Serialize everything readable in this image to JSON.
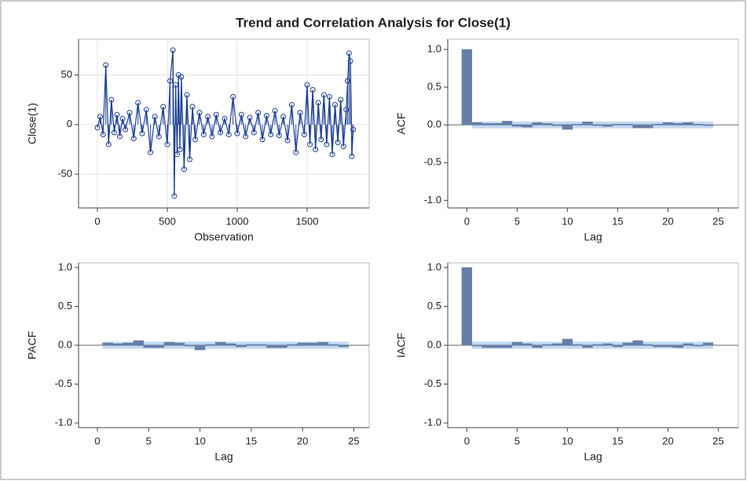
{
  "title": "Trend and Correlation Analysis for Close(1)",
  "chart_data": [
    {
      "type": "line",
      "xlabel": "Observation",
      "ylabel": "Close(1)",
      "color": "#1c3f94",
      "grid": true,
      "x": [
        0,
        20,
        40,
        60,
        80,
        100,
        120,
        140,
        160,
        180,
        200,
        230,
        260,
        290,
        320,
        350,
        380,
        410,
        440,
        470,
        500,
        520,
        540,
        550,
        560,
        570,
        580,
        590,
        600,
        620,
        640,
        660,
        680,
        700,
        730,
        760,
        790,
        820,
        850,
        880,
        910,
        940,
        970,
        1000,
        1030,
        1060,
        1090,
        1120,
        1150,
        1180,
        1210,
        1240,
        1270,
        1300,
        1330,
        1360,
        1390,
        1420,
        1450,
        1480,
        1500,
        1520,
        1540,
        1560,
        1580,
        1600,
        1620,
        1640,
        1660,
        1680,
        1700,
        1720,
        1740,
        1760,
        1780,
        1790,
        1800,
        1810,
        1820,
        1830
      ],
      "values": [
        -3,
        8,
        -10,
        60,
        -20,
        25,
        -8,
        10,
        -12,
        6,
        -5,
        12,
        -14,
        22,
        -9,
        15,
        -28,
        8,
        -12,
        18,
        -20,
        44,
        75,
        -72,
        40,
        -30,
        50,
        -25,
        48,
        -45,
        30,
        -35,
        18,
        -15,
        12,
        -10,
        8,
        -12,
        10,
        -8,
        6,
        -10,
        28,
        -9,
        10,
        -12,
        7,
        -8,
        12,
        -15,
        9,
        -10,
        14,
        -11,
        8,
        -16,
        20,
        -28,
        12,
        -10,
        40,
        -20,
        35,
        -25,
        22,
        -15,
        30,
        -20,
        28,
        -30,
        20,
        -18,
        25,
        -22,
        15,
        44,
        72,
        64,
        -32,
        -5
      ],
      "xlim": [
        -135,
        1944
      ],
      "ylim": [
        -84,
        86
      ],
      "xticks": [
        0,
        500,
        1000,
        1500
      ],
      "yticks": [
        -50,
        0,
        50
      ]
    },
    {
      "type": "bar",
      "xlabel": "Lag",
      "ylabel": "ACF",
      "color": "#667fa8",
      "band_color": "#b9d3ee",
      "conf_limit": 0.046,
      "lags": [
        0,
        1,
        2,
        3,
        4,
        5,
        6,
        7,
        8,
        9,
        10,
        11,
        12,
        13,
        14,
        15,
        16,
        17,
        18,
        19,
        20,
        21,
        22,
        23,
        24
      ],
      "values": [
        1.0,
        0.03,
        0.02,
        0.02,
        0.05,
        -0.02,
        -0.03,
        0.03,
        0.02,
        -0.01,
        -0.06,
        0.01,
        0.04,
        -0.01,
        -0.02,
        0.01,
        0.01,
        -0.04,
        -0.04,
        0.01,
        0.03,
        0.02,
        0.03,
        0.01,
        -0.01
      ],
      "xlim": [
        -1.9,
        27
      ],
      "ylim": [
        -1.1,
        1.135
      ],
      "xticks": [
        0,
        5,
        10,
        15,
        20,
        25
      ],
      "yticks": [
        {
          "value": -1,
          "label": "-1.0"
        },
        -0.5,
        {
          "value": 0,
          "label": "0.0"
        },
        0.5,
        {
          "value": 1,
          "label": "1.0"
        }
      ]
    },
    {
      "type": "bar",
      "xlabel": "Lag",
      "ylabel": "PACF",
      "color": "#667fa8",
      "band_color": "#b9d3ee",
      "conf_limit": 0.046,
      "lags": [
        1,
        2,
        3,
        4,
        5,
        6,
        7,
        8,
        9,
        10,
        11,
        12,
        13,
        14,
        15,
        16,
        17,
        18,
        19,
        20,
        21,
        22,
        23,
        24
      ],
      "values": [
        0.03,
        0.02,
        0.03,
        0.06,
        -0.03,
        -0.03,
        0.04,
        0.03,
        -0.01,
        -0.06,
        0.01,
        0.04,
        0.02,
        -0.02,
        0.01,
        0.01,
        -0.03,
        -0.03,
        0.01,
        0.03,
        0.03,
        0.04,
        0.01,
        -0.02
      ],
      "xlim": [
        -1.84,
        26.5
      ],
      "ylim": [
        -1.06,
        1.06
      ],
      "xticks": [
        0,
        5,
        10,
        15,
        20,
        25
      ],
      "yticks": [
        {
          "value": -1,
          "label": "-1.0"
        },
        -0.5,
        {
          "value": 0,
          "label": "0.0"
        },
        0.5,
        {
          "value": 1,
          "label": "1.0"
        }
      ]
    },
    {
      "type": "bar",
      "xlabel": "Lag",
      "ylabel": "IACF",
      "color": "#667fa8",
      "band_color": "#b9d3ee",
      "conf_limit": 0.046,
      "lags": [
        0,
        1,
        2,
        3,
        4,
        5,
        6,
        7,
        8,
        9,
        10,
        11,
        12,
        13,
        14,
        15,
        16,
        17,
        18,
        19,
        20,
        21,
        22,
        23,
        24
      ],
      "values": [
        1.0,
        -0.01,
        -0.03,
        -0.03,
        -0.03,
        0.04,
        0.02,
        -0.03,
        0.01,
        0.02,
        0.08,
        0.01,
        -0.03,
        0.01,
        0.02,
        -0.02,
        0.03,
        0.06,
        0.01,
        -0.02,
        -0.02,
        -0.03,
        0.02,
        -0.01,
        0.03
      ],
      "xlim": [
        -1.9,
        27
      ],
      "ylim": [
        -1.06,
        1.06
      ],
      "xticks": [
        0,
        5,
        10,
        15,
        20,
        25
      ],
      "yticks": [
        {
          "value": -1,
          "label": "-1.0"
        },
        -0.5,
        {
          "value": 0,
          "label": "0.0"
        },
        0.5,
        {
          "value": 1,
          "label": "1.0"
        }
      ]
    }
  ]
}
